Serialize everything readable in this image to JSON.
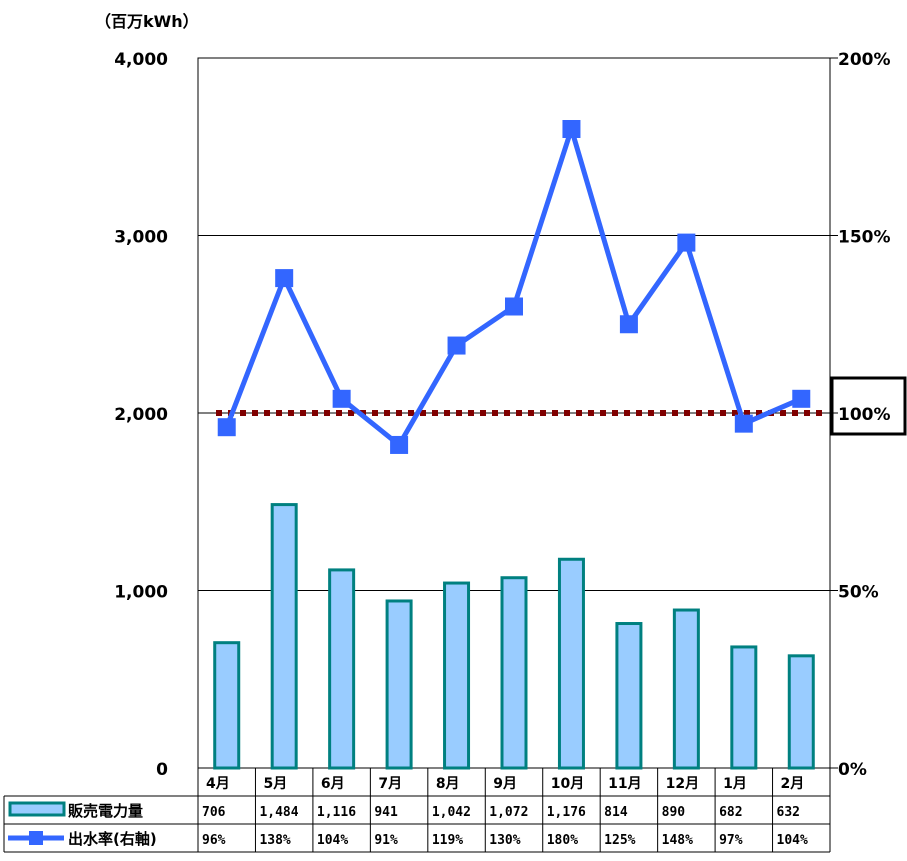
{
  "chart_data": {
    "type": "bar+line",
    "unit_label": "（百万kWh）",
    "categories": [
      "4月",
      "5月",
      "6月",
      "7月",
      "8月",
      "9月",
      "10月",
      "11月",
      "12月",
      "1月",
      "2月"
    ],
    "left_axis": {
      "ticks": [
        "0",
        "1,000",
        "2,000",
        "3,000",
        "4,000"
      ],
      "range": [
        0,
        4000
      ]
    },
    "right_axis": {
      "ticks": [
        "0%",
        "50%",
        "100%",
        "150%",
        "200%"
      ],
      "range": [
        0,
        200
      ]
    },
    "bar_series": {
      "name": "販売電力量",
      "values": [
        706,
        1484,
        1116,
        941,
        1042,
        1072,
        1176,
        814,
        890,
        682,
        632
      ],
      "labels": [
        "706",
        "1,484",
        "1,116",
        "941",
        "1,042",
        "1,072",
        "1,176",
        "814",
        "890",
        "682",
        "632"
      ],
      "fill": "#99ccff",
      "stroke": "#008080"
    },
    "line_series": {
      "name": "出水率(右軸)",
      "values": [
        96,
        138,
        104,
        91,
        119,
        130,
        180,
        125,
        148,
        97,
        104
      ],
      "labels": [
        "96%",
        "138%",
        "104%",
        "91%",
        "119%",
        "130%",
        "180%",
        "125%",
        "148%",
        "97%",
        "104%"
      ],
      "color": "#3366ff",
      "marker": "square"
    },
    "reference_line": {
      "value": 100,
      "color": "#800000",
      "style": "dotted"
    },
    "highlighted_right_tick": "100%"
  }
}
